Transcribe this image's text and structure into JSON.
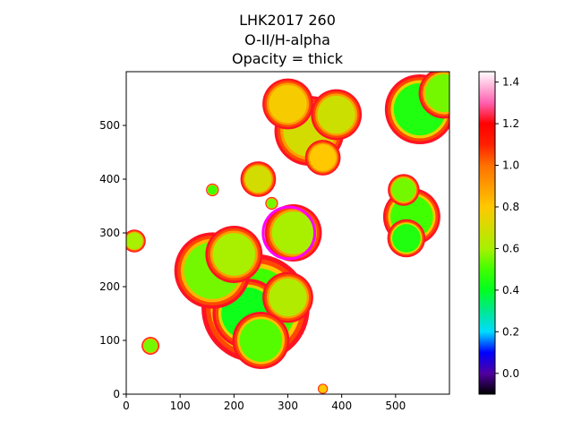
{
  "chart_data": {
    "type": "heatmap",
    "title_lines": [
      "LHK2017 260",
      "O-II/H-alpha",
      "Opacity = thick"
    ],
    "xlabel": "",
    "ylabel": "",
    "xlim": [
      0,
      600
    ],
    "ylim": [
      0,
      600
    ],
    "x_ticks": [
      0,
      100,
      200,
      300,
      400,
      500
    ],
    "y_ticks": [
      0,
      100,
      200,
      300,
      400,
      500
    ],
    "colorbar": {
      "colormap": "gist_ncar-like (black-purple-blue-cyan-green-yellow-orange-red-pink-white)",
      "vmin": -0.1,
      "vmax": 1.45,
      "ticks": [
        0.0,
        0.2,
        0.4,
        0.6,
        0.8,
        1.0,
        1.2,
        1.4
      ],
      "tick_labels": [
        "0.0",
        "0.2",
        "0.4",
        "0.6",
        "0.8",
        "1.0",
        "1.2",
        "1.4"
      ],
      "stops": [
        {
          "v": -0.1,
          "color": "#000000"
        },
        {
          "v": 0.0,
          "color": "#5000a0"
        },
        {
          "v": 0.1,
          "color": "#0000ff"
        },
        {
          "v": 0.2,
          "color": "#00dcff"
        },
        {
          "v": 0.3,
          "color": "#00e890"
        },
        {
          "v": 0.4,
          "color": "#00ff20"
        },
        {
          "v": 0.5,
          "color": "#40ff00"
        },
        {
          "v": 0.6,
          "color": "#a8f000"
        },
        {
          "v": 0.8,
          "color": "#ffc800"
        },
        {
          "v": 1.0,
          "color": "#ff7000"
        },
        {
          "v": 1.1,
          "color": "#ff2000"
        },
        {
          "v": 1.2,
          "color": "#ff0000"
        },
        {
          "v": 1.3,
          "color": "#ff60b0"
        },
        {
          "v": 1.45,
          "color": "#ffffff"
        }
      ]
    },
    "background_value": 1.45,
    "regions": [
      {
        "x": 240,
        "y": 160,
        "r": 85,
        "value": 0.5
      },
      {
        "x": 225,
        "y": 150,
        "r": 55,
        "value": 0.42
      },
      {
        "x": 160,
        "y": 230,
        "r": 60,
        "value": 0.55
      },
      {
        "x": 200,
        "y": 260,
        "r": 45,
        "value": 0.6
      },
      {
        "x": 300,
        "y": 180,
        "r": 40,
        "value": 0.62
      },
      {
        "x": 250,
        "y": 100,
        "r": 45,
        "value": 0.52
      },
      {
        "x": 310,
        "y": 300,
        "r": 45,
        "value": 0.6
      },
      {
        "x": 45,
        "y": 90,
        "r": 14,
        "value": 0.55
      },
      {
        "x": 15,
        "y": 285,
        "r": 18,
        "value": 0.6
      },
      {
        "x": 530,
        "y": 330,
        "r": 45,
        "value": 0.5
      },
      {
        "x": 520,
        "y": 290,
        "r": 30,
        "value": 0.45
      },
      {
        "x": 515,
        "y": 380,
        "r": 25,
        "value": 0.55
      },
      {
        "x": 545,
        "y": 530,
        "r": 55,
        "value": 0.45
      },
      {
        "x": 590,
        "y": 560,
        "r": 40,
        "value": 0.55
      },
      {
        "x": 340,
        "y": 490,
        "r": 55,
        "value": 0.7
      },
      {
        "x": 390,
        "y": 520,
        "r": 40,
        "value": 0.68
      },
      {
        "x": 300,
        "y": 540,
        "r": 40,
        "value": 0.78
      },
      {
        "x": 245,
        "y": 400,
        "r": 28,
        "value": 0.7
      },
      {
        "x": 365,
        "y": 440,
        "r": 28,
        "value": 0.8
      },
      {
        "x": 270,
        "y": 355,
        "r": 10,
        "value": 0.55
      },
      {
        "x": 160,
        "y": 380,
        "r": 10,
        "value": 0.5
      },
      {
        "x": 365,
        "y": 10,
        "r": 8,
        "value": 0.8
      }
    ],
    "annotations": [
      {
        "type": "circle",
        "x": 302,
        "y": 300,
        "r": 48,
        "color": "#ff00ff"
      }
    ]
  }
}
